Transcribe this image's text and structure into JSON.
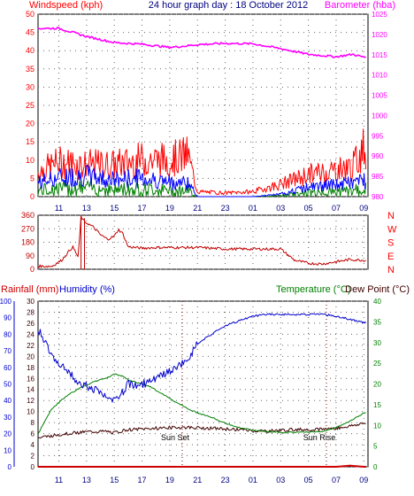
{
  "header": {
    "left_label": "Windspeed (kph)",
    "title": "24 hour graph day : 18 October 2012",
    "right_label": "Barometer (hba)"
  },
  "colors": {
    "wind": "#ff0000",
    "gust_blue": "#0000ff",
    "gust_green": "#008000",
    "barometer": "#ff00ff",
    "direction": "#c00000",
    "humidity": "#0000cc",
    "temperature": "#008000",
    "dewpoint": "#400000",
    "rain": "#cc0000",
    "axis_blue": "#000080",
    "axis_green": "#006400",
    "title_blue": "#000080"
  },
  "x_ticks": [
    "11",
    "13",
    "15",
    "17",
    "19",
    "21",
    "23",
    "01",
    "03",
    "05",
    "07",
    "09"
  ],
  "chart_data": [
    {
      "type": "line",
      "name": "wind-barometer",
      "title": "24 hour graph day : 18 October 2012",
      "ylabel": "Windspeed (kph)",
      "y2label": "Barometer (hba)",
      "ylim": [
        0,
        50
      ],
      "y2lim": [
        980,
        1025
      ],
      "y_ticks": [
        0,
        5,
        10,
        15,
        20,
        25,
        30,
        35,
        40,
        45,
        50
      ],
      "y2_ticks": [
        980,
        985,
        990,
        995,
        1000,
        1005,
        1010,
        1015,
        1020,
        1025
      ],
      "grid": true,
      "x": [
        9.5,
        11,
        13,
        15,
        17,
        19,
        20.3,
        21,
        23,
        25,
        27,
        29,
        31,
        32.2,
        33
      ],
      "barometer": [
        1021.5,
        1021.5,
        1019.5,
        1018,
        1017.6,
        1016.8,
        1017.2,
        1017.5,
        1017.8,
        1017.7,
        1016.5,
        1015.1,
        1014.5,
        1015.1,
        1014.4
      ],
      "wind_avg_hourly": [
        3,
        4,
        4.5,
        3.5,
        4,
        3,
        3,
        0,
        0,
        0,
        0.5,
        2,
        2.5,
        3,
        3.5
      ],
      "wind_gust_max_hourly": [
        10,
        14,
        13,
        13,
        15,
        15,
        17,
        2,
        1.5,
        2,
        5,
        9,
        11,
        12,
        20
      ]
    },
    {
      "type": "line",
      "name": "wind-direction",
      "ylim": [
        0,
        360
      ],
      "y_ticks": [
        0,
        90,
        180,
        270,
        360
      ],
      "direction_labels": [
        "N",
        "W",
        "S",
        "E",
        "N"
      ],
      "grid": true,
      "x": [
        9.5,
        10.5,
        11.2,
        12,
        12.4,
        12.6,
        12.8,
        13,
        13.5,
        14,
        14.5,
        15,
        15.3,
        15.6,
        16,
        17,
        18,
        19,
        21,
        23,
        27,
        28,
        29,
        30,
        31,
        32,
        33
      ],
      "values": [
        20,
        20,
        60,
        150,
        80,
        350,
        320,
        310,
        280,
        230,
        200,
        220,
        265,
        240,
        150,
        140,
        145,
        145,
        145,
        135,
        135,
        60,
        40,
        35,
        50,
        65,
        60
      ]
    },
    {
      "type": "line",
      "name": "humidity-temperature",
      "ylabels": [
        "Rainfall (mm)",
        "Humidity (%)"
      ],
      "y2labels": [
        "Temperature (°C)",
        "Dew Point (°C)"
      ],
      "rain_lim": [
        0,
        30
      ],
      "humidity_lim": [
        0,
        100
      ],
      "temp_lim": [
        0,
        40
      ],
      "rain_ticks": [
        0,
        2,
        4,
        6,
        8,
        10,
        12,
        14,
        16,
        18,
        20,
        22,
        24,
        26,
        28,
        30
      ],
      "humidity_ticks": [
        0,
        10,
        20,
        30,
        40,
        50,
        60,
        70,
        80,
        90,
        100
      ],
      "temp_ticks": [
        0,
        5,
        10,
        15,
        20,
        25,
        30,
        35,
        40
      ],
      "grid": true,
      "annotations": [
        {
          "label": "Sun Set",
          "x": 19.9
        },
        {
          "label": "Sun Rise",
          "x": 30.3
        }
      ],
      "x": [
        9.5,
        10.5,
        11.5,
        12.5,
        13.5,
        14.5,
        15,
        15.5,
        16,
        16.5,
        17.5,
        18.5,
        19.5,
        20.3,
        21,
        22,
        23,
        24,
        25,
        26,
        27,
        28,
        29,
        30,
        31,
        32,
        33
      ],
      "humidity": [
        83,
        68,
        58,
        51,
        47,
        42,
        39,
        44,
        50,
        49,
        51,
        55,
        60,
        65,
        74,
        80,
        85,
        88,
        91,
        92,
        92,
        92,
        92,
        92,
        91,
        89,
        87
      ],
      "temperature": [
        8,
        14,
        17,
        19,
        20.5,
        21.5,
        22.5,
        22,
        21,
        20.5,
        19.5,
        17.5,
        15.5,
        14,
        13,
        12,
        10.5,
        9.5,
        8.8,
        8.5,
        8.3,
        8.3,
        8.4,
        8.5,
        9.5,
        11,
        13
      ],
      "dewpoint": [
        7,
        7.5,
        8,
        8.3,
        8.5,
        8.5,
        8.2,
        8.6,
        9,
        9,
        9.2,
        9.4,
        9.5,
        9.5,
        9.4,
        9.3,
        9.1,
        9,
        8.7,
        8.6,
        8.8,
        9,
        9,
        9.1,
        9.3,
        9.8,
        10.5
      ],
      "rain": [
        0,
        0,
        0,
        0,
        0,
        0,
        0,
        0,
        0,
        0,
        0,
        0,
        0,
        0,
        0,
        0,
        0,
        0,
        0,
        0,
        0,
        0,
        0,
        0,
        0,
        0.2,
        0
      ]
    }
  ],
  "panel3": {
    "rain_label": "Rainfall (mm)",
    "humidity_label": "Humidity (%)",
    "temp_label": "Temperature (°C)",
    "dew_label": "Dew Point (°C)"
  }
}
